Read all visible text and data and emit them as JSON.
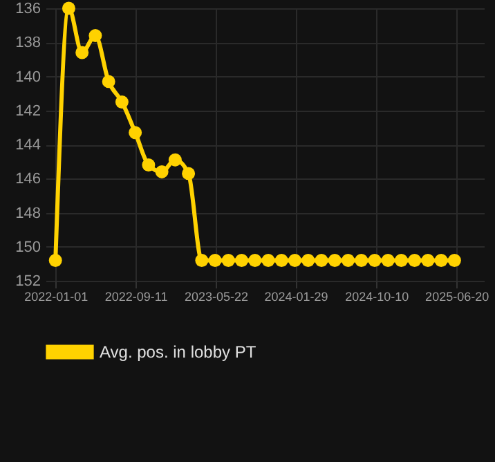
{
  "chart_data": {
    "type": "line",
    "x": [
      "2022-01-01",
      "2022-02-12",
      "2022-03-26",
      "2022-05-07",
      "2022-06-18",
      "2022-07-30",
      "2022-09-10",
      "2022-10-22",
      "2022-12-03",
      "2023-01-14",
      "2023-02-25",
      "2023-04-08",
      "2023-05-20",
      "2023-07-01",
      "2023-08-12",
      "2023-09-23",
      "2023-11-04",
      "2023-12-16",
      "2024-01-27",
      "2024-03-09",
      "2024-04-20",
      "2024-06-01",
      "2024-07-13",
      "2024-08-24",
      "2024-10-05",
      "2024-11-16",
      "2024-12-28",
      "2025-02-08",
      "2025-03-22",
      "2025-05-03",
      "2025-06-14"
    ],
    "series": [
      {
        "name": "Avg. pos. in lobby PT",
        "color": "#ffd200",
        "values": [
          150.8,
          136,
          138.6,
          137.6,
          140.3,
          141.5,
          143.3,
          145.2,
          145.6,
          144.9,
          145.7,
          150.8,
          150.8,
          150.8,
          150.8,
          150.8,
          150.8,
          150.8,
          150.8,
          150.8,
          150.8,
          150.8,
          150.8,
          150.8,
          150.8,
          150.8,
          150.8,
          150.8,
          150.8,
          150.8,
          150.8
        ]
      }
    ],
    "xlim": [
      "2021-12-01",
      "2025-09-15"
    ],
    "xticks": [
      "2022-01-01",
      "2022-09-11",
      "2023-05-22",
      "2024-01-29",
      "2024-10-10",
      "2025-06-20"
    ],
    "ylim": [
      152,
      136
    ],
    "yticks": [
      136,
      138,
      140,
      142,
      144,
      146,
      148,
      150,
      152
    ],
    "grid": true,
    "legend": "bottom",
    "marker": "circle",
    "line_style": "solid"
  }
}
